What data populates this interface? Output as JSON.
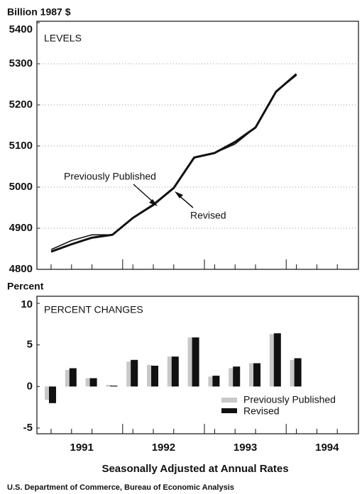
{
  "chart_data": [
    {
      "type": "line",
      "y_label": "Billion 1987 $",
      "panel_label": "LEVELS",
      "categories": [
        null,
        null,
        null,
        null,
        null,
        null,
        null,
        null,
        null,
        null,
        null,
        null,
        null
      ],
      "series": [
        {
          "name": "Previously Published",
          "color": "#111111",
          "values": [
            4848,
            4870,
            4884,
            4884,
            4925,
            4955,
            4998,
            5072,
            5083,
            5105,
            5145,
            5232,
            5272
          ]
        },
        {
          "name": "Revised",
          "color": "#111111",
          "values": [
            4843,
            4861,
            4877,
            4884,
            4925,
            4957,
            4998,
            5072,
            5083,
            5110,
            5145,
            5232,
            5275
          ]
        }
      ],
      "ylim": [
        4800,
        5400
      ],
      "yticks": [
        4800,
        4900,
        5000,
        5100,
        5200,
        5300,
        5400
      ],
      "grid": true
    },
    {
      "type": "bar",
      "y_label": "Percent",
      "panel_label": "PERCENT CHANGES",
      "categories": [
        null,
        null,
        null,
        null,
        null,
        null,
        null,
        null,
        null,
        null,
        null,
        null,
        null
      ],
      "series": [
        {
          "name": "Previously Published",
          "color": "#c8c8c8",
          "values": [
            -1.6,
            2.0,
            1.0,
            0.2,
            3.0,
            2.6,
            3.6,
            5.9,
            1.2,
            2.2,
            2.8,
            6.3,
            3.2
          ]
        },
        {
          "name": "Revised",
          "color": "#111111",
          "values": [
            -2.0,
            2.2,
            1.0,
            0.1,
            3.2,
            2.5,
            3.6,
            5.9,
            1.3,
            2.4,
            2.8,
            6.4,
            3.4
          ]
        }
      ],
      "ylim": [
        -5,
        10
      ],
      "yticks": [
        -5,
        0,
        5,
        10
      ],
      "grid": false,
      "years": [
        "1991",
        "1992",
        "1993",
        "1994"
      ]
    }
  ],
  "x_axis_title": "Seasonally Adjusted at Annual Rates",
  "source": "U.S. Department of Commerce, Bureau of Economic Analysis"
}
